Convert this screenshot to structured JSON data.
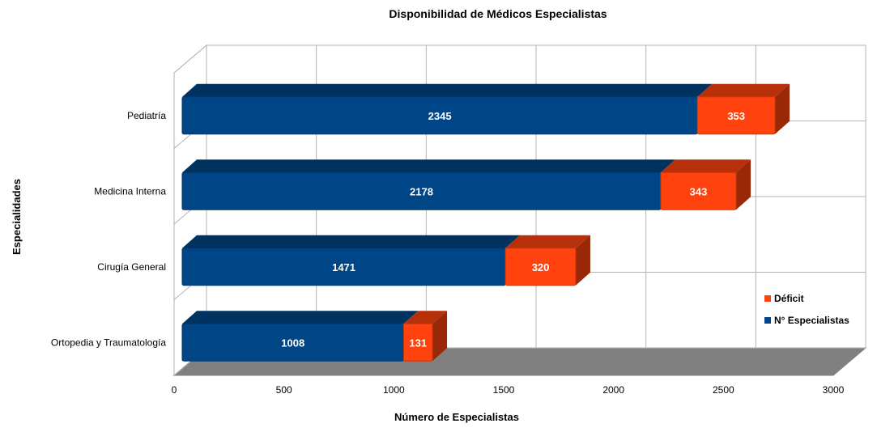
{
  "chart_data": {
    "type": "bar",
    "orientation": "horizontal",
    "stacked": true,
    "title": "Disponibilidad de Médicos Especialistas",
    "xlabel": "Número de Especialistas",
    "ylabel": "Especialidades",
    "xlim": [
      0,
      3000
    ],
    "x_ticks": [
      "0",
      "500",
      "1000",
      "1500",
      "2000",
      "2500",
      "3000"
    ],
    "categories": [
      "Pediatría",
      "Medicina Interna",
      "Cirugía General",
      "Ortopedia y Traumatología"
    ],
    "series": [
      {
        "name": "N° Especialistas",
        "color": "#004586",
        "values": [
          2345,
          2178,
          1471,
          1008
        ]
      },
      {
        "name": "Déficit",
        "color": "#ff420e",
        "values": [
          353,
          343,
          320,
          131
        ]
      }
    ],
    "legend_entries": [
      "Déficit",
      "N° Especialistas"
    ],
    "legend_position": "right",
    "grid": true
  }
}
